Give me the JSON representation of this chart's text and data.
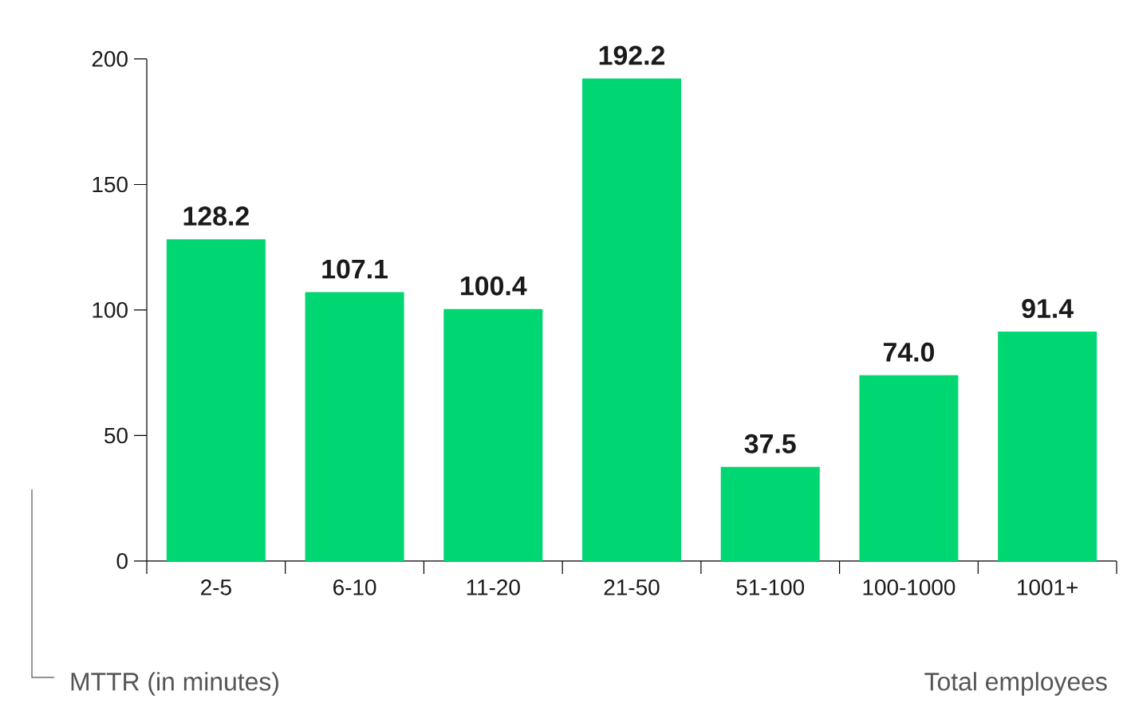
{
  "chart_data": {
    "type": "bar",
    "xlabel": "Total employees",
    "ylabel": "MTTR (in minutes)",
    "categories": [
      "2-5",
      "6-10",
      "11-20",
      "21-50",
      "51-100",
      "100-1000",
      "1001+"
    ],
    "values": [
      128.2,
      107.1,
      100.4,
      192.2,
      37.5,
      74.0,
      91.4
    ],
    "value_labels": [
      "128.2",
      "107.1",
      "100.4",
      "192.2",
      "37.5",
      "74.0",
      "91.4"
    ],
    "color": "#00d672",
    "ylim": [
      0,
      200
    ],
    "yticks": [
      0,
      50,
      100,
      150,
      200
    ]
  }
}
